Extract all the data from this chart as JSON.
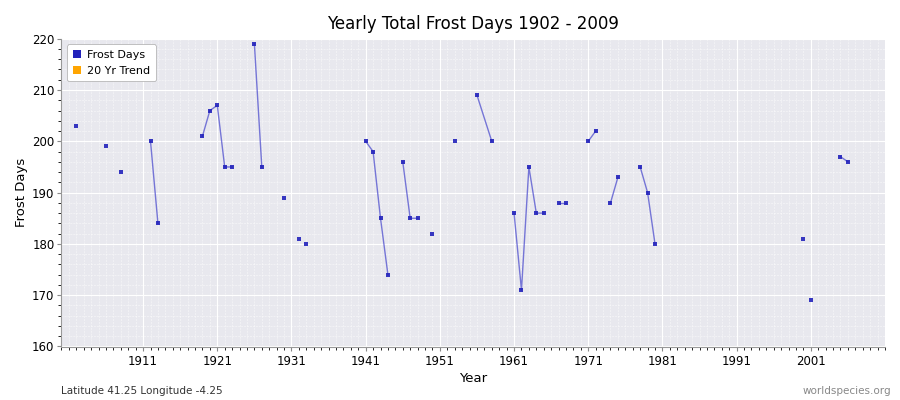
{
  "title": "Yearly Total Frost Days 1902 - 2009",
  "xlabel": "Year",
  "ylabel": "Frost Days",
  "subtitle": "Latitude 41.25 Longitude -4.25",
  "watermark": "worldspecies.org",
  "ylim": [
    160,
    220
  ],
  "xlim": [
    1900,
    2011
  ],
  "yticks": [
    160,
    170,
    180,
    190,
    200,
    210,
    220
  ],
  "xticks": [
    1911,
    1921,
    1931,
    1941,
    1951,
    1961,
    1971,
    1981,
    1991,
    2001
  ],
  "bg_color": "#e8e8ee",
  "fig_color": "#ffffff",
  "line_color": "#4444cc",
  "marker_color": "#2222bb",
  "frost_days": [
    [
      1902,
      203
    ],
    [
      1906,
      199
    ],
    [
      1908,
      194
    ],
    [
      1912,
      200
    ],
    [
      1913,
      184
    ],
    [
      1919,
      201
    ],
    [
      1920,
      206
    ],
    [
      1921,
      207
    ],
    [
      1922,
      195
    ],
    [
      1923,
      195
    ],
    [
      1926,
      219
    ],
    [
      1927,
      195
    ],
    [
      1930,
      189
    ],
    [
      1932,
      181
    ],
    [
      1933,
      180
    ],
    [
      1941,
      200
    ],
    [
      1942,
      198
    ],
    [
      1943,
      185
    ],
    [
      1944,
      174
    ],
    [
      1946,
      196
    ],
    [
      1947,
      185
    ],
    [
      1948,
      185
    ],
    [
      1950,
      182
    ],
    [
      1953,
      200
    ],
    [
      1956,
      209
    ],
    [
      1958,
      200
    ],
    [
      1961,
      186
    ],
    [
      1962,
      171
    ],
    [
      1963,
      195
    ],
    [
      1964,
      186
    ],
    [
      1965,
      186
    ],
    [
      1967,
      188
    ],
    [
      1968,
      188
    ],
    [
      1971,
      200
    ],
    [
      1972,
      202
    ],
    [
      1974,
      188
    ],
    [
      1975,
      193
    ],
    [
      1978,
      195
    ],
    [
      1979,
      190
    ],
    [
      1980,
      180
    ],
    [
      2000,
      181
    ],
    [
      2001,
      169
    ],
    [
      2005,
      197
    ],
    [
      2006,
      196
    ]
  ],
  "connected_groups": [
    [
      1912,
      1913
    ],
    [
      1919,
      1920,
      1921,
      1922,
      1923
    ],
    [
      1926,
      1927
    ],
    [
      1941,
      1942,
      1943,
      1944
    ],
    [
      1946,
      1947,
      1948
    ],
    [
      1956,
      1958
    ],
    [
      1961,
      1962,
      1963,
      1964,
      1965
    ],
    [
      1967,
      1968
    ],
    [
      1971,
      1972
    ],
    [
      1974,
      1975
    ],
    [
      1978,
      1979,
      1980
    ],
    [
      2005,
      2006
    ]
  ]
}
